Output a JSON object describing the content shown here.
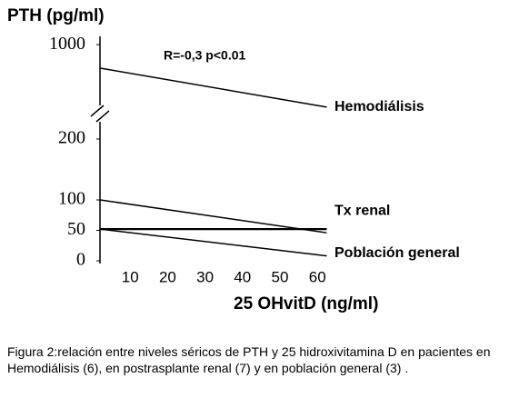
{
  "chart_data": [
    {
      "type": "line",
      "title": "PTH (pg/ml)",
      "annotation": "R=-0,3 p<0.01",
      "x": [
        2,
        62.5
      ],
      "xlim": [
        0,
        65
      ],
      "ylim": [
        500,
        1100
      ],
      "yticks": [
        1000
      ],
      "series": [
        {
          "name": "Hemodiálisis",
          "color": "#000000",
          "values": [
            818,
            515
          ]
        }
      ]
    },
    {
      "type": "line",
      "xlabel": "25 OHvitD (ng/ml)",
      "x": [
        2,
        62.5
      ],
      "xlim": [
        0,
        65
      ],
      "ylim": [
        0,
        220
      ],
      "yticks": [
        0,
        50,
        100,
        200
      ],
      "xticks": [
        10,
        20,
        30,
        40,
        50,
        60
      ],
      "series": [
        {
          "color": "#000000",
          "values": [
            52,
            52
          ]
        },
        {
          "name": "Tx renal",
          "color": "#000000",
          "values": [
            100,
            46
          ]
        },
        {
          "name": "Población general",
          "color": "#000000",
          "values": [
            52,
            8
          ]
        }
      ]
    }
  ],
  "caption": "Figura 2:relación entre niveles séricos de PTH y 25 hidroxivitamina D en pacientes en Hemodiálisis (6), en postrasplante renal (7) y en población general (3) ."
}
